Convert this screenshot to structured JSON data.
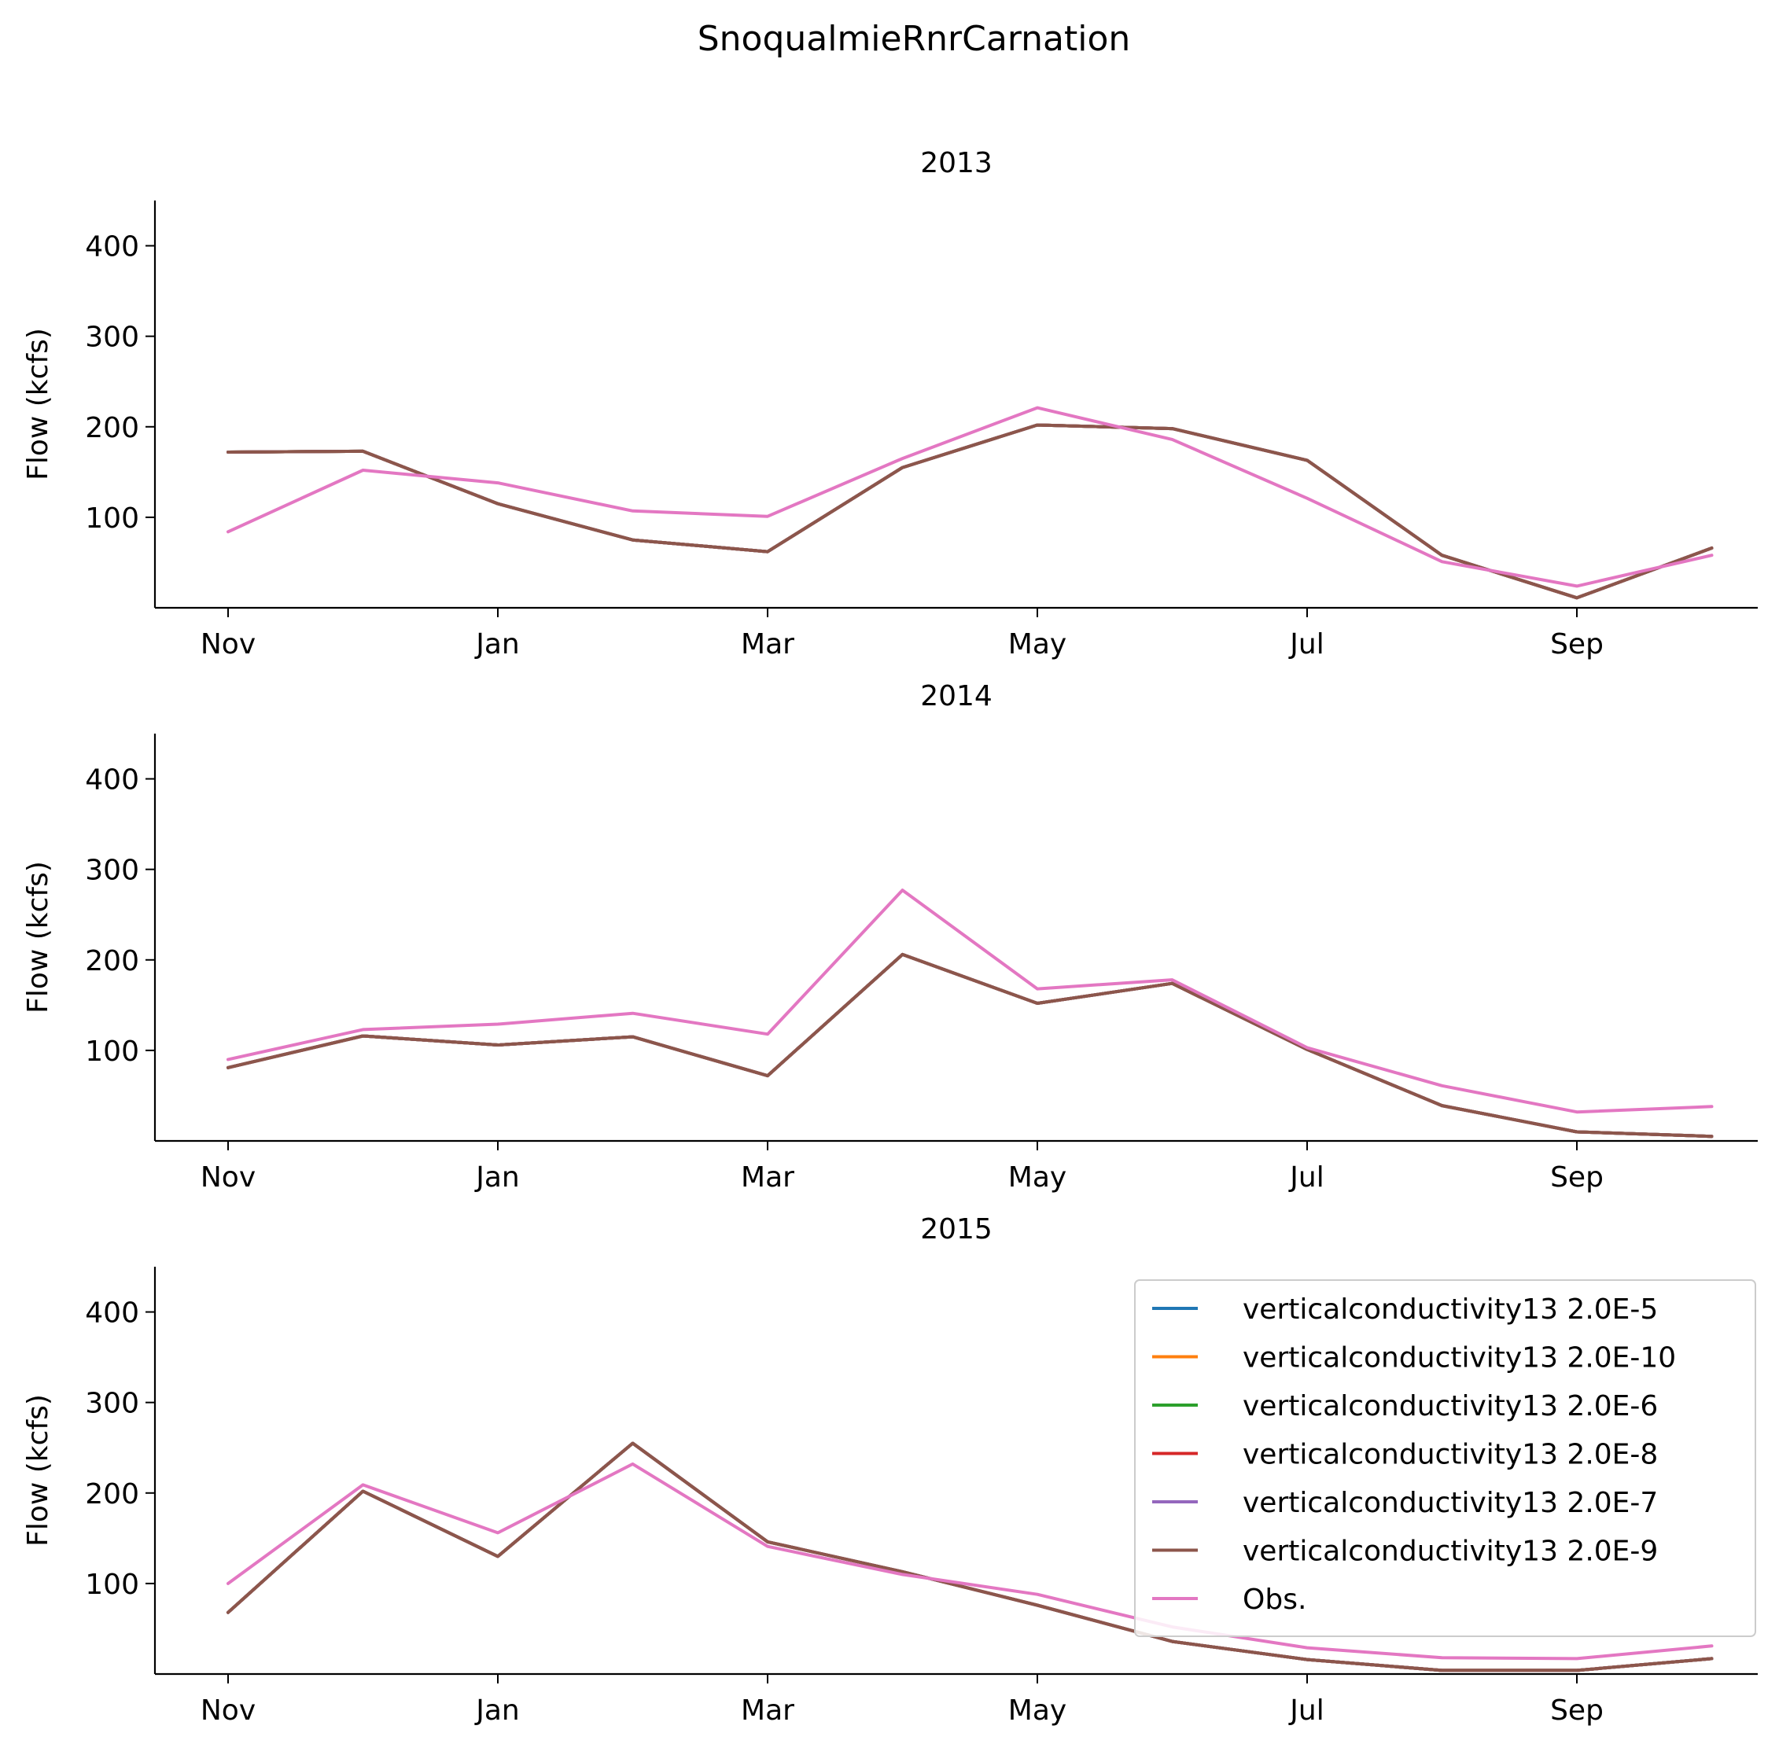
{
  "chart_data": {
    "type": "line",
    "title": "SnoqualmieRnrCarnation",
    "ylabel": "Flow (kcfs)",
    "x_tick_labels": [
      "Nov",
      "Jan",
      "Mar",
      "May",
      "Jul",
      "Sep"
    ],
    "x_tick_months": [
      0,
      2,
      4,
      6,
      8,
      10
    ],
    "ylim": [
      0,
      450
    ],
    "y_ticks": [
      100,
      200,
      300,
      400
    ],
    "legend_position": "upper right of bottom panel",
    "legend": [
      {
        "name": "verticalconductivity13 2.0E-5",
        "color": "#1f77b4"
      },
      {
        "name": "verticalconductivity13 2.0E-10",
        "color": "#ff7f0e"
      },
      {
        "name": "verticalconductivity13 2.0E-6",
        "color": "#2ca02c"
      },
      {
        "name": "verticalconductivity13 2.0E-8",
        "color": "#d62728"
      },
      {
        "name": "verticalconductivity13 2.0E-7",
        "color": "#9467bd"
      },
      {
        "name": "verticalconductivity13 2.0E-9",
        "color": "#8c564b"
      },
      {
        "name": "Obs.",
        "color": "#e377c2"
      }
    ],
    "panels": [
      {
        "title": "2013",
        "months": [
          "Nov",
          "Dec",
          "Jan",
          "Feb",
          "Mar",
          "Apr",
          "May",
          "Jun",
          "Jul",
          "Aug",
          "Sep",
          "Oct"
        ],
        "series": [
          {
            "name": "verticalconductivity13 2.0E-5",
            "color": "#1f77b4",
            "values": [
              172,
              173,
              115,
              75,
              62,
              155,
              202,
              198,
              163,
              58,
              11,
              66
            ]
          },
          {
            "name": "verticalconductivity13 2.0E-10",
            "color": "#ff7f0e",
            "values": [
              172,
              173,
              115,
              75,
              62,
              155,
              202,
              198,
              163,
              58,
              11,
              66
            ]
          },
          {
            "name": "verticalconductivity13 2.0E-6",
            "color": "#2ca02c",
            "values": [
              172,
              173,
              115,
              75,
              62,
              155,
              202,
              198,
              163,
              58,
              11,
              66
            ]
          },
          {
            "name": "verticalconductivity13 2.0E-8",
            "color": "#d62728",
            "values": [
              172,
              173,
              115,
              75,
              62,
              155,
              202,
              198,
              163,
              58,
              11,
              66
            ]
          },
          {
            "name": "verticalconductivity13 2.0E-7",
            "color": "#9467bd",
            "values": [
              172,
              173,
              115,
              75,
              62,
              155,
              202,
              198,
              163,
              58,
              11,
              66
            ]
          },
          {
            "name": "verticalconductivity13 2.0E-9",
            "color": "#8c564b",
            "values": [
              172,
              173,
              115,
              75,
              62,
              155,
              202,
              198,
              163,
              58,
              11,
              66
            ]
          },
          {
            "name": "Obs.",
            "color": "#e377c2",
            "values": [
              84,
              152,
              138,
              107,
              101,
              165,
              221,
              186,
              121,
              51,
              24,
              58
            ]
          }
        ]
      },
      {
        "title": "2014",
        "months": [
          "Nov",
          "Dec",
          "Jan",
          "Feb",
          "Mar",
          "Apr",
          "May",
          "Jun",
          "Jul",
          "Aug",
          "Sep",
          "Oct"
        ],
        "series": [
          {
            "name": "verticalconductivity13 2.0E-5",
            "color": "#1f77b4",
            "values": [
              81,
              116,
              106,
              115,
              72,
              206,
              152,
              174,
              101,
              39,
              10,
              5
            ]
          },
          {
            "name": "verticalconductivity13 2.0E-10",
            "color": "#ff7f0e",
            "values": [
              81,
              116,
              106,
              115,
              72,
              206,
              152,
              174,
              101,
              39,
              10,
              5
            ]
          },
          {
            "name": "verticalconductivity13 2.0E-6",
            "color": "#2ca02c",
            "values": [
              81,
              116,
              106,
              115,
              72,
              206,
              152,
              174,
              101,
              39,
              10,
              5
            ]
          },
          {
            "name": "verticalconductivity13 2.0E-8",
            "color": "#d62728",
            "values": [
              81,
              116,
              106,
              115,
              72,
              206,
              152,
              174,
              101,
              39,
              10,
              5
            ]
          },
          {
            "name": "verticalconductivity13 2.0E-7",
            "color": "#9467bd",
            "values": [
              81,
              116,
              106,
              115,
              72,
              206,
              152,
              174,
              101,
              39,
              10,
              5
            ]
          },
          {
            "name": "verticalconductivity13 2.0E-9",
            "color": "#8c564b",
            "values": [
              81,
              116,
              106,
              115,
              72,
              206,
              152,
              174,
              101,
              39,
              10,
              5
            ]
          },
          {
            "name": "Obs.",
            "color": "#e377c2",
            "values": [
              90,
              123,
              129,
              141,
              118,
              277,
              168,
              178,
              103,
              61,
              32,
              38
            ]
          }
        ]
      },
      {
        "title": "2015",
        "months": [
          "Nov",
          "Dec",
          "Jan",
          "Feb",
          "Mar",
          "Apr",
          "May",
          "Jun",
          "Jul",
          "Aug",
          "Sep",
          "Oct"
        ],
        "series": [
          {
            "name": "verticalconductivity13 2.0E-5",
            "color": "#1f77b4",
            "values": [
              68,
              202,
              130,
              255,
              146,
              113,
              76,
              36,
              16,
              4,
              4,
              17
            ]
          },
          {
            "name": "verticalconductivity13 2.0E-10",
            "color": "#ff7f0e",
            "values": [
              68,
              202,
              130,
              255,
              146,
              113,
              76,
              36,
              16,
              4,
              4,
              17
            ]
          },
          {
            "name": "verticalconductivity13 2.0E-6",
            "color": "#2ca02c",
            "values": [
              68,
              202,
              130,
              255,
              146,
              113,
              76,
              36,
              16,
              4,
              4,
              17
            ]
          },
          {
            "name": "verticalconductivity13 2.0E-8",
            "color": "#d62728",
            "values": [
              68,
              202,
              130,
              255,
              146,
              113,
              76,
              36,
              16,
              4,
              4,
              17
            ]
          },
          {
            "name": "verticalconductivity13 2.0E-7",
            "color": "#9467bd",
            "values": [
              68,
              202,
              130,
              255,
              146,
              113,
              76,
              36,
              16,
              4,
              4,
              17
            ]
          },
          {
            "name": "verticalconductivity13 2.0E-9",
            "color": "#8c564b",
            "values": [
              68,
              202,
              130,
              255,
              146,
              113,
              76,
              36,
              16,
              4,
              4,
              17
            ]
          },
          {
            "name": "Obs.",
            "color": "#e377c2",
            "values": [
              100,
              209,
              156,
              232,
              141,
              110,
              88,
              52,
              29,
              18,
              17,
              31
            ]
          }
        ]
      }
    ]
  }
}
